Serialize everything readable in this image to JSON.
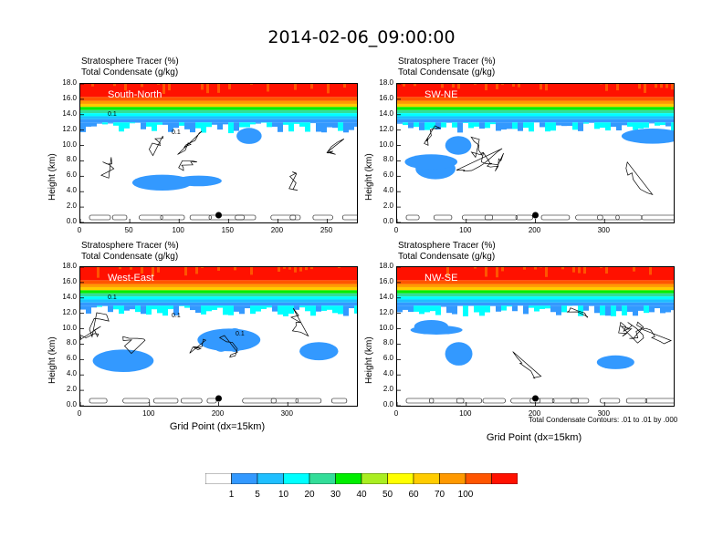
{
  "title": "2014-02-06_09:00:00",
  "chart_data": [
    {
      "type": "heatmap",
      "panel_label": "South-North",
      "header_line1": "Stratosphere Tracer   (%)",
      "header_line2": "Total Condensate   (g/kg)",
      "ylabel": "Height (km)",
      "xlabel": "",
      "xlim": [
        0,
        280
      ],
      "xticks": [
        0,
        50,
        100,
        150,
        200,
        250
      ],
      "ylim": [
        0,
        18
      ],
      "yticks": [
        "0.0",
        "2.0",
        "4.0",
        "6.0",
        "8.0",
        "10.0",
        "12.0",
        "14.0",
        "16.0",
        "18.0"
      ],
      "contour_labels": [
        "0.1",
        "0.1"
      ],
      "marker_x": 140
    },
    {
      "type": "heatmap",
      "panel_label": "SW-NE",
      "header_line1": "Stratosphere Tracer   (%)",
      "header_line2": "Total Condensate   (g/kg)",
      "ylabel": "Height (km)",
      "xlabel": "",
      "xlim": [
        0,
        400
      ],
      "xticks": [
        0,
        100,
        200,
        300
      ],
      "ylim": [
        0,
        18
      ],
      "yticks": [
        "0.0",
        "2.0",
        "4.0",
        "6.0",
        "8.0",
        "10.0",
        "12.0",
        "14.0",
        "16.0",
        "18.0"
      ],
      "contour_labels": [],
      "marker_x": 200
    },
    {
      "type": "heatmap",
      "panel_label": "West-East",
      "header_line1": "Stratosphere Tracer   (%)",
      "header_line2": "Total Condensate   (g/kg)",
      "ylabel": "Height (km)",
      "xlabel": "Grid Point (dx=15km)",
      "xlim": [
        0,
        400
      ],
      "xticks": [
        0,
        100,
        200,
        300
      ],
      "ylim": [
        0,
        18
      ],
      "yticks": [
        "0.0",
        "2.0",
        "4.0",
        "6.0",
        "8.0",
        "10.0",
        "12.0",
        "14.0",
        "16.0",
        "18.0"
      ],
      "contour_labels": [
        "0.1",
        "0.1",
        "0.1"
      ],
      "marker_x": 200
    },
    {
      "type": "heatmap",
      "panel_label": "NW-SE",
      "header_line1": "Stratosphere Tracer   (%)",
      "header_line2": "Total Condensate   (g/kg)",
      "ylabel": "Height (km)",
      "xlabel": "Grid Point (dx=15km)",
      "xlim": [
        0,
        400
      ],
      "xticks": [
        0,
        100,
        200,
        300
      ],
      "ylim": [
        0,
        18
      ],
      "yticks": [
        "0.0",
        "2.0",
        "4.0",
        "6.0",
        "8.0",
        "10.0",
        "12.0",
        "14.0",
        "16.0",
        "18.0"
      ],
      "contour_labels": [],
      "marker_x": 200
    }
  ],
  "contour_note": "Total Condensate Contours: .01 to .01 by .000",
  "colorbar": {
    "labels": [
      "1",
      "5",
      "10",
      "20",
      "30",
      "40",
      "50",
      "60",
      "70",
      "100"
    ],
    "colors": [
      "#ffffff",
      "#3399ff",
      "#1fbfff",
      "#00ffff",
      "#33dd99",
      "#00ee00",
      "#aaee22",
      "#ffff00",
      "#ffcc00",
      "#ff9900",
      "#ff5500",
      "#ff1100"
    ]
  }
}
